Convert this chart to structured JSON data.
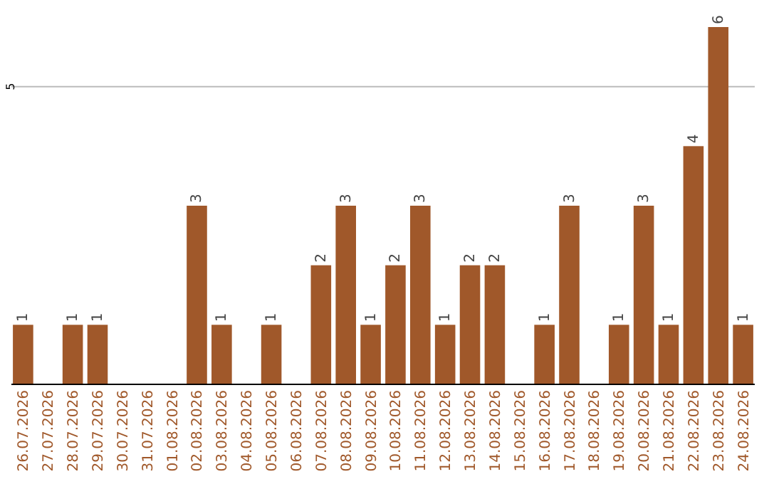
{
  "chart_data": {
    "type": "bar",
    "categories": [
      "26.07.2026",
      "27.07.2026",
      "28.07.2026",
      "29.07.2026",
      "30.07.2026",
      "31.07.2026",
      "01.08.2026",
      "02.08.2026",
      "03.08.2026",
      "04.08.2026",
      "05.08.2026",
      "06.08.2026",
      "07.08.2026",
      "08.08.2026",
      "09.08.2026",
      "10.08.2026",
      "11.08.2026",
      "12.08.2026",
      "13.08.2026",
      "14.08.2026",
      "15.08.2026",
      "16.08.2026",
      "17.08.2026",
      "18.08.2026",
      "19.08.2026",
      "20.08.2026",
      "21.08.2026",
      "22.08.2026",
      "23.08.2026",
      "24.08.2026"
    ],
    "values": [
      1,
      0,
      1,
      1,
      0,
      0,
      0,
      3,
      1,
      0,
      1,
      0,
      2,
      3,
      1,
      2,
      3,
      1,
      2,
      2,
      0,
      1,
      3,
      0,
      1,
      3,
      1,
      4,
      6,
      1
    ],
    "value_labels": [
      "1",
      null,
      "1",
      "1",
      null,
      null,
      null,
      "3",
      "1",
      null,
      "1",
      null,
      "2",
      "3",
      "1",
      "2",
      "3",
      "1",
      "2",
      "2",
      null,
      "1",
      "3",
      null,
      "1",
      "3",
      "1",
      "4",
      "6",
      "1"
    ],
    "color": "#a0582a",
    "ylim": [
      0,
      6
    ],
    "yticks": [
      5
    ],
    "grid": "y"
  }
}
